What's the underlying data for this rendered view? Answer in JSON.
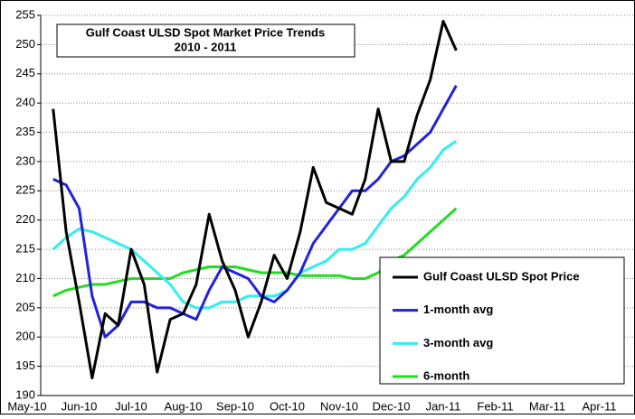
{
  "chart_data": {
    "type": "line",
    "title": "Gulf Coast ULSD Spot Market Price Trends",
    "subtitle": "2010 - 2011",
    "categories": [
      "May-10",
      null,
      null,
      null,
      "Jun-10",
      null,
      null,
      null,
      "Jul-10",
      null,
      null,
      null,
      "Aug-10",
      null,
      null,
      null,
      "Sep-10",
      null,
      null,
      null,
      "Oct-10",
      null,
      null,
      null,
      "Nov-10",
      null,
      null,
      null,
      "Dec-10",
      null,
      null,
      null,
      "Jan-11",
      null,
      null,
      null,
      "Feb-11",
      null,
      null,
      null,
      "Mar-11",
      null,
      null,
      null,
      "Apr-11",
      null,
      null,
      null
    ],
    "series": [
      {
        "name": "Gulf Coast ULSD Spot Price",
        "color": "#000000",
        "values": [
          null,
          null,
          239,
          218,
          206,
          193,
          204,
          202,
          215,
          209,
          194,
          203,
          204,
          209,
          221,
          213,
          208,
          200,
          206,
          214,
          210,
          218,
          229,
          223,
          222,
          221,
          227,
          239,
          230,
          230,
          238,
          244,
          254,
          249,
          null,
          null,
          null,
          null,
          null,
          null,
          null,
          null,
          null,
          null,
          null,
          null,
          null,
          null
        ]
      },
      {
        "name": "1-month avg",
        "color": "#2222dd",
        "values": [
          null,
          null,
          227,
          226,
          222,
          207,
          200,
          202,
          206,
          206,
          205,
          205,
          204,
          203,
          208,
          212,
          211,
          210,
          207,
          206,
          208,
          211,
          216,
          219,
          222,
          225,
          225,
          227,
          230,
          231,
          233,
          235,
          239,
          243,
          null,
          null,
          null,
          null,
          null,
          null,
          null,
          null,
          null,
          null,
          null,
          null,
          null,
          null
        ]
      },
      {
        "name": "3-month avg",
        "color": "#33eeee",
        "values": [
          null,
          null,
          215,
          217,
          218.5,
          218,
          217,
          216,
          215,
          213,
          211,
          209,
          206,
          205,
          205,
          206,
          206,
          207,
          207,
          207,
          208,
          211,
          212,
          213,
          215,
          215,
          216,
          219,
          222,
          224,
          227,
          229,
          232,
          233.5,
          null,
          null,
          null,
          null,
          null,
          null,
          null,
          null,
          null,
          null,
          null,
          null,
          null,
          null
        ]
      },
      {
        "name": "6-month",
        "color": "#22dd22",
        "values": [
          null,
          null,
          207,
          208,
          208.5,
          209,
          209,
          209.5,
          210,
          210,
          210,
          210,
          211,
          211.5,
          212,
          212,
          212,
          211.5,
          211,
          211,
          211,
          210.5,
          210.5,
          210.5,
          210.5,
          210,
          210,
          211,
          213,
          214,
          216,
          218,
          220,
          222,
          null,
          null,
          null,
          null,
          null,
          null,
          null,
          null,
          null,
          null,
          null,
          null,
          null,
          null
        ]
      }
    ],
    "ylim": [
      190,
      255
    ],
    "yticks": [
      190,
      195,
      200,
      205,
      210,
      215,
      220,
      225,
      230,
      235,
      240,
      245,
      250,
      255
    ],
    "grid": true,
    "legend": "lower right"
  }
}
